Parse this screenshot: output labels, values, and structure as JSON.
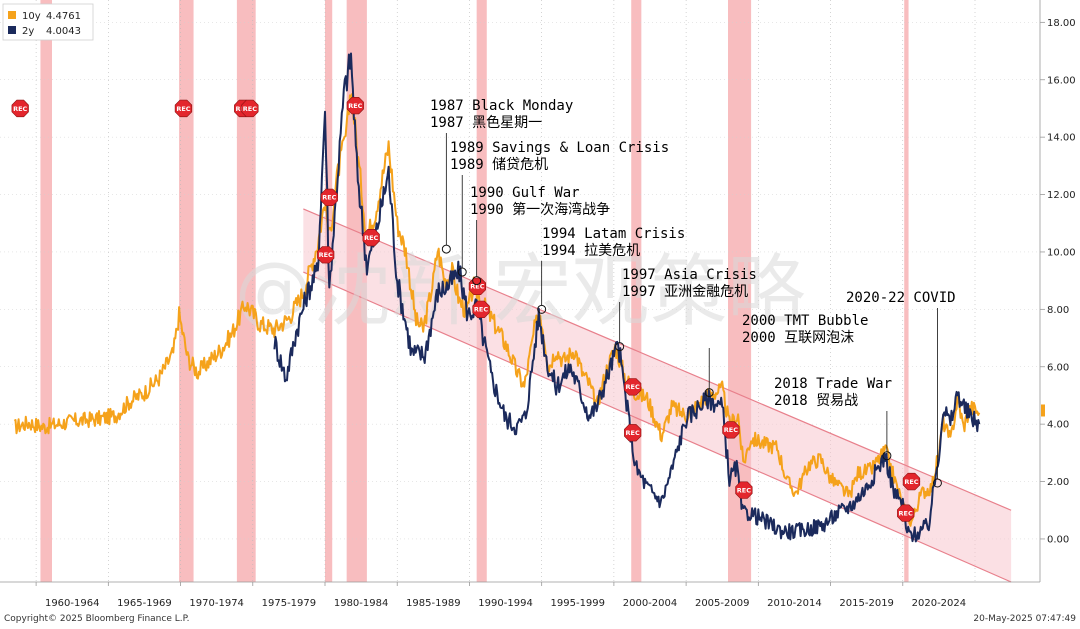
{
  "chart_data": {
    "type": "line",
    "legend": {
      "position": "top-left",
      "items": [
        {
          "label": "10y",
          "value": "4.4761",
          "color": "#f5a21b"
        },
        {
          "label": "2y",
          "value": "4.0043",
          "color": "#1b2a5c"
        }
      ]
    },
    "x_range": [
      1957.5,
      2029.5
    ],
    "y_range": [
      -1.5,
      18.5
    ],
    "y_ticks": [
      "18.00",
      "16.00",
      "14.00",
      "12.00",
      "10.00",
      "8.00",
      "6.00",
      "4.00",
      "2.00",
      "0.00"
    ],
    "x_ticks": [
      "1960-1964",
      "1965-1969",
      "1970-1974",
      "1975-1979",
      "1980-1984",
      "1985-1989",
      "1990-1994",
      "1995-1999",
      "2000-2004",
      "2005-2009",
      "2010-2014",
      "2015-2019",
      "2020-2024"
    ],
    "series": [
      {
        "name": "10y",
        "color": "#f5a21b",
        "x": [
          1958.5,
          1959.5,
          1960.5,
          1961.5,
          1962.5,
          1963.5,
          1964.5,
          1965.5,
          1966.5,
          1967.5,
          1968.5,
          1969.5,
          1969.9,
          1970.5,
          1971.2,
          1972,
          1972.8,
          1973.5,
          1974.5,
          1975.5,
          1976.5,
          1977.5,
          1978.5,
          1979.5,
          1980,
          1980.3,
          1980.9,
          1981.5,
          1981.8,
          1982.3,
          1982.9,
          1983.5,
          1984.4,
          1985,
          1985.6,
          1986.3,
          1986.8,
          1987.5,
          1987.8,
          1988.3,
          1988.8,
          1989.3,
          1989.8,
          1990.3,
          1990.8,
          1991.5,
          1992.5,
          1993.3,
          1993.8,
          1994.5,
          1994.9,
          1995.5,
          1996,
          1996.5,
          1997.3,
          1997.8,
          1998.3,
          1998.8,
          1999.5,
          2000.1,
          2000.8,
          2001.5,
          2002.3,
          2003.3,
          2004,
          2005,
          2006.5,
          2007.5,
          2008,
          2008.6,
          2008.95,
          2009.5,
          2010.5,
          2011.3,
          2012,
          2012.6,
          2013.5,
          2014.3,
          2015,
          2016.3,
          2016.9,
          2017.8,
          2018.8,
          2019.6,
          2020.2,
          2020.6,
          2021.3,
          2022,
          2022.5,
          2022.8,
          2023.3,
          2023.8,
          2024.2,
          2024.7,
          2025.3
        ],
        "values": [
          3.9,
          4.05,
          3.9,
          4.0,
          4.1,
          4.15,
          4.2,
          4.3,
          4.8,
          5.1,
          5.6,
          6.5,
          7.8,
          6.3,
          5.8,
          6.2,
          6.6,
          7.1,
          8.2,
          7.5,
          7.3,
          7.7,
          8.6,
          10.3,
          11.8,
          10.5,
          12.8,
          14.2,
          15.8,
          13.2,
          10.5,
          11.4,
          13.7,
          11.0,
          10.0,
          7.6,
          7.3,
          9.0,
          10.1,
          9.0,
          9.3,
          8.3,
          7.9,
          8.8,
          8.3,
          7.7,
          6.8,
          5.8,
          5.3,
          7.3,
          7.9,
          6.0,
          6.6,
          6.2,
          6.6,
          5.8,
          5.4,
          4.6,
          5.9,
          6.7,
          5.6,
          5.1,
          4.9,
          3.6,
          4.6,
          4.3,
          5.0,
          5.2,
          4.0,
          4.3,
          2.6,
          3.5,
          3.3,
          3.2,
          2.0,
          1.6,
          2.6,
          2.8,
          2.1,
          1.5,
          2.3,
          2.4,
          3.1,
          1.8,
          0.9,
          0.6,
          1.6,
          1.8,
          3.0,
          4.1,
          3.4,
          4.9,
          3.9,
          4.6,
          4.4
        ],
        "end_value": 4.4761
      },
      {
        "name": "2y",
        "color": "#1b2a5c",
        "x": [
          1976.5,
          1977.3,
          1978,
          1978.8,
          1979.5,
          1980,
          1980.3,
          1980.6,
          1981.3,
          1981.8,
          1982.2,
          1982.9,
          1983.5,
          1984.4,
          1985,
          1986,
          1986.9,
          1987.8,
          1988.5,
          1989.3,
          1989.9,
          1990.5,
          1991.5,
          1992.5,
          1993.3,
          1993.9,
          1994.8,
          1995.4,
          1996,
          1997,
          1998.3,
          1998.8,
          1999.5,
          2000.3,
          2000.8,
          2001.5,
          2002.3,
          2003.3,
          2004,
          2005,
          2006.5,
          2007.5,
          2008,
          2008.5,
          2008.9,
          2009.5,
          2010.5,
          2011.5,
          2012.5,
          2013.5,
          2014.5,
          2015.5,
          2016.5,
          2017.5,
          2018.8,
          2019.4,
          2020,
          2020.3,
          2020.9,
          2021.8,
          2022.5,
          2022.8,
          2023.3,
          2023.8,
          2024.3,
          2024.8,
          2025.3
        ],
        "values": [
          6.9,
          5.6,
          7.2,
          8.6,
          9.4,
          15.0,
          8.7,
          10.8,
          15.5,
          16.8,
          13.0,
          9.5,
          10.6,
          12.8,
          9.0,
          6.5,
          6.4,
          8.6,
          8.8,
          9.3,
          7.8,
          8.1,
          5.7,
          4.2,
          3.9,
          4.3,
          7.8,
          6.1,
          5.3,
          6.0,
          4.3,
          4.6,
          5.6,
          6.8,
          5.0,
          2.5,
          1.8,
          1.3,
          2.4,
          4.2,
          4.9,
          4.6,
          2.1,
          2.5,
          0.9,
          0.9,
          0.6,
          0.3,
          0.25,
          0.35,
          0.5,
          0.9,
          1.2,
          1.8,
          2.9,
          1.6,
          1.2,
          0.2,
          0.15,
          0.5,
          3.0,
          4.6,
          4.0,
          5.1,
          4.5,
          4.2,
          4.0
        ],
        "end_value": 4.0043
      }
    ],
    "trend_channel": {
      "upper": {
        "x": [
          1978.5,
          2027.5
        ],
        "values": [
          11.5,
          1.0
        ]
      },
      "lower": {
        "x": [
          1978.5,
          2027.5
        ],
        "values": [
          9.3,
          -1.5
        ]
      }
    },
    "recession_bands": [
      [
        1960.3,
        1961.1
      ],
      [
        1969.9,
        1970.9
      ],
      [
        1973.9,
        1975.2
      ],
      [
        1980.0,
        1980.5
      ],
      [
        1981.5,
        1982.9
      ],
      [
        1990.5,
        1991.2
      ],
      [
        2001.2,
        2001.9
      ],
      [
        2007.9,
        2009.5
      ],
      [
        2020.1,
        2020.4
      ]
    ],
    "rec_markers": [
      {
        "label": "REC",
        "x": 1958.9,
        "y": 15.0
      },
      {
        "label": "REC",
        "x": 1970.2,
        "y": 15.0
      },
      {
        "label": "REC",
        "x": 1974.3,
        "y": 15.0
      },
      {
        "label": "REC",
        "x": 1974.8,
        "y": 15.0
      },
      {
        "label": "REC",
        "x": 1980.05,
        "y": 9.9
      },
      {
        "label": "REC",
        "x": 1980.3,
        "y": 11.9
      },
      {
        "label": "REC",
        "x": 1982.1,
        "y": 15.1
      },
      {
        "label": "REC",
        "x": 1983.2,
        "y": 10.5
      },
      {
        "label": "REC",
        "x": 1990.55,
        "y": 8.8
      },
      {
        "label": "REC",
        "x": 1990.8,
        "y": 8.0
      },
      {
        "label": "REC",
        "x": 2001.3,
        "y": 5.3
      },
      {
        "label": "REC",
        "x": 2001.3,
        "y": 3.7
      },
      {
        "label": "REC",
        "x": 2008.1,
        "y": 3.8
      },
      {
        "label": "REC",
        "x": 2009.0,
        "y": 1.7
      },
      {
        "label": "REC",
        "x": 2020.6,
        "y": 2.0
      },
      {
        "label": "REC",
        "x": 2020.2,
        "y": 0.9
      }
    ],
    "annotations": [
      {
        "x": 1988.4,
        "y": 10.1,
        "lines": [
          "1987 Black Monday",
          "1987 黑色星期一"
        ],
        "anchor": "bottom"
      },
      {
        "x": 1989.5,
        "y": 9.3,
        "lines": [
          "1989 Savings & Loan Crisis",
          "1989 储贷危机"
        ],
        "anchor": "bottom"
      },
      {
        "x": 1990.5,
        "y": 9.0,
        "lines": [
          "1990 Gulf War",
          "1990 第一次海湾战争"
        ],
        "anchor": "bottom"
      },
      {
        "x": 1995.0,
        "y": 8.0,
        "lines": [
          "1994 Latam Crisis",
          "1994 拉美危机"
        ],
        "anchor": "bottom"
      },
      {
        "x": 2000.4,
        "y": 6.7,
        "lines": [
          "1997 Asia Crisis",
          "1997 亚洲金融危机"
        ],
        "anchor": "bottom"
      },
      {
        "x": 2006.6,
        "y": 5.1,
        "lines": [
          "2000 TMT Bubble",
          "2000 互联网泡沫"
        ],
        "anchor": "bottom"
      },
      {
        "x": 2018.9,
        "y": 2.9,
        "lines": [
          "2018 Trade War",
          "2018 贸易战"
        ],
        "anchor": "bottom"
      },
      {
        "x": 2022.4,
        "y": 1.95,
        "lines": [
          "2020-22 COVID"
        ],
        "anchor": "bottom"
      }
    ],
    "watermark": "@沈新  宏观策略"
  },
  "footer": {
    "copyright": "Copyright© 2025 Bloomberg Finance L.P.",
    "timestamp": "20-May-2025 07:47:49"
  }
}
